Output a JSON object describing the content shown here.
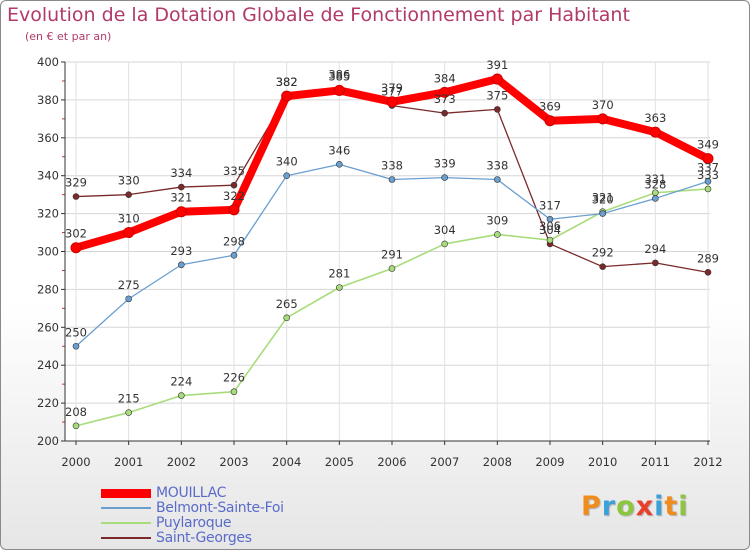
{
  "header": {
    "title": "Evolution de la Dotation Globale de Fonctionnement par Habitant",
    "subtitle": "(en € et par an)"
  },
  "brand": {
    "letters": [
      "P",
      "r",
      "o",
      "x",
      "i",
      "t",
      "i"
    ],
    "colors": [
      "#f08c1e",
      "#3ba1d8",
      "#8cc63f",
      "#e8402a",
      "#3ba1d8",
      "#f08c1e",
      "#8cc63f"
    ]
  },
  "chart_data": {
    "type": "line",
    "title": "Evolution de la Dotation Globale de Fonctionnement par Habitant",
    "subtitle": "(en € et par an)",
    "xlabel": "",
    "ylabel": "",
    "categories": [
      "2000",
      "2001",
      "2002",
      "2003",
      "2004",
      "2005",
      "2006",
      "2007",
      "2008",
      "2009",
      "2010",
      "2011",
      "2012"
    ],
    "ylim": [
      200,
      400
    ],
    "yticks": [
      200,
      220,
      240,
      260,
      280,
      300,
      320,
      340,
      360,
      380,
      400
    ],
    "grid": true,
    "legend_position": "bottom-left",
    "series": [
      {
        "name": "MOUILLAC",
        "color": "#ff0000",
        "values": [
          302,
          310,
          321,
          322,
          382,
          385,
          379,
          384,
          391,
          369,
          370,
          363,
          349
        ]
      },
      {
        "name": "Belmont-Sainte-Foi",
        "color": "#6a9fcf",
        "values": [
          250,
          275,
          293,
          298,
          340,
          346,
          338,
          339,
          338,
          317,
          320,
          328,
          337
        ]
      },
      {
        "name": "Puylaroque",
        "color": "#a8dc7a",
        "values": [
          208,
          215,
          224,
          226,
          265,
          281,
          291,
          304,
          309,
          306,
          321,
          331,
          333
        ]
      },
      {
        "name": "Saint-Georges",
        "color": "#7a2a2a",
        "values": [
          329,
          330,
          334,
          335,
          382,
          386,
          377,
          373,
          375,
          304,
          292,
          294,
          289
        ]
      }
    ]
  }
}
